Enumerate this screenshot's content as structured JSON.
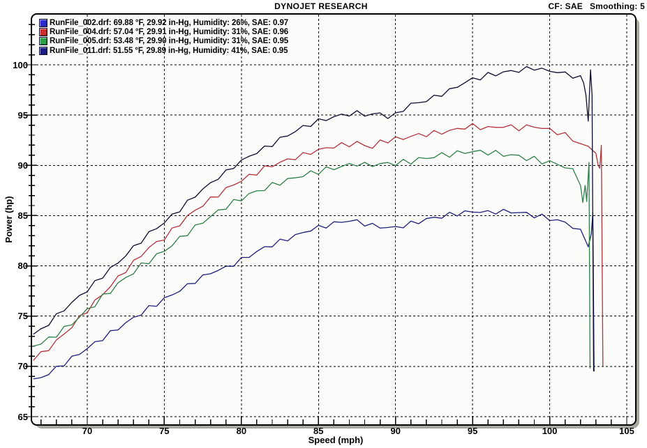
{
  "header": {
    "title": "DYNOJET RESEARCH",
    "cf": "CF: SAE",
    "smoothing": "Smoothing: 5"
  },
  "chart_data": {
    "type": "line",
    "title": "DYNOJET RESEARCH",
    "xlabel": "Speed (mph)",
    "ylabel": "Power (hp)",
    "xlim": [
      66.4,
      105.6
    ],
    "ylim": [
      64.2,
      105.1
    ],
    "x_ticks": [
      70,
      75,
      80,
      85,
      90,
      95,
      100,
      105
    ],
    "y_ticks": [
      65,
      70,
      75,
      80,
      85,
      90,
      95,
      100
    ],
    "x_minor_from": 67,
    "x_minor_to": 105,
    "y_minor_from": 65,
    "y_minor_to": 104,
    "grid": "dashed",
    "legend_position": "top-left",
    "series": [
      {
        "name": "RunFile_002.drf",
        "label": "RunFile_002.drf: 69.88 °F, 29.92 in-Hg, Humidity: 26%, SAE: 0.97",
        "marker_color": "#2b2bd0",
        "curve_color": "#1e1e7a",
        "x0": 66.5,
        "dx": 0.5,
        "hp": [
          68.6,
          68.9,
          69.3,
          69.8,
          70.3,
          70.8,
          71.3,
          71.8,
          72.3,
          72.8,
          73.3,
          73.8,
          74.3,
          74.8,
          75.3,
          75.8,
          76.2,
          76.7,
          77.1,
          77.6,
          78.0,
          78.5,
          78.9,
          79.3,
          79.6,
          79.8,
          80.2,
          80.6,
          81.0,
          81.4,
          81.8,
          82.1,
          82.4,
          82.7,
          83.0,
          83.3,
          83.6,
          83.8,
          84.0,
          84.2,
          84.4,
          84.5,
          84.4,
          84.2,
          84.0,
          83.9,
          83.8,
          83.8,
          84.0,
          84.2,
          84.4,
          84.6,
          84.8,
          84.9,
          85.1,
          85.2,
          85.3,
          85.4,
          85.4,
          85.3,
          85.4,
          85.4,
          85.4,
          85.3,
          85.2,
          85.0,
          84.9,
          84.7,
          84.5,
          84.3,
          83.9,
          83.4
        ],
        "tail": [
          [
            102.3,
            82.6
          ],
          [
            102.5,
            81.9
          ],
          [
            102.7,
            83.2
          ],
          [
            102.8,
            85.3
          ],
          [
            102.88,
            69.5
          ]
        ],
        "wiggle": 0.25,
        "phase": 0.5
      },
      {
        "name": "RunFile_004.drf",
        "label": "RunFile_004.drf: 57.04 °F, 29.91 in-Hg, Humidity: 31%, SAE: 0.96",
        "marker_color": "#cc2c2c",
        "curve_color": "#b4323c",
        "x0": 66.5,
        "dx": 0.5,
        "hp": [
          70.8,
          71.2,
          71.8,
          72.5,
          73.2,
          74.0,
          74.8,
          75.6,
          76.4,
          77.2,
          78.0,
          78.8,
          79.6,
          80.3,
          81.1,
          81.8,
          82.3,
          82.8,
          83.5,
          84.2,
          84.9,
          85.5,
          86.1,
          86.6,
          87.1,
          87.6,
          88.1,
          88.5,
          88.9,
          89.3,
          89.7,
          90.0,
          90.3,
          90.5,
          90.8,
          91.0,
          91.3,
          91.5,
          91.7,
          91.9,
          92.0,
          92.1,
          92.2,
          92.0,
          91.8,
          92.3,
          92.5,
          92.6,
          92.7,
          92.9,
          93.0,
          93.1,
          93.2,
          93.3,
          93.4,
          93.6,
          93.8,
          93.9,
          93.8,
          93.7,
          93.8,
          93.9,
          93.8,
          93.7,
          93.8,
          93.9,
          93.7,
          93.5,
          93.3,
          93.0,
          92.6,
          92.1,
          91.8,
          91.4
        ],
        "tail": [
          [
            103.15,
            90.0
          ],
          [
            103.25,
            89.7
          ],
          [
            103.35,
            92.0
          ],
          [
            103.45,
            70.0
          ]
        ],
        "wiggle": 0.27,
        "phase": 2.1
      },
      {
        "name": "RunFile_005.drf",
        "label": "RunFile_005.drf: 53.48 °F, 29.90 in-Hg, Humidity: 31%, SAE: 0.95",
        "marker_color": "#2ca044",
        "curve_color": "#2e8049",
        "x0": 66.5,
        "dx": 0.5,
        "hp": [
          72.1,
          72.3,
          72.7,
          73.2,
          73.7,
          74.3,
          74.9,
          75.6,
          76.2,
          76.9,
          77.5,
          78.2,
          78.8,
          79.4,
          80.0,
          80.5,
          81.0,
          81.5,
          82.1,
          82.7,
          83.3,
          83.8,
          84.4,
          84.9,
          85.4,
          85.9,
          86.3,
          86.7,
          87.1,
          87.4,
          87.7,
          88.0,
          88.3,
          88.5,
          88.8,
          89.0,
          89.2,
          89.4,
          89.6,
          89.7,
          89.9,
          90.0,
          90.2,
          90.0,
          90.1,
          90.1,
          90.2,
          90.2,
          90.3,
          90.4,
          90.6,
          90.7,
          90.9,
          91.0,
          91.1,
          91.2,
          91.3,
          91.4,
          91.3,
          91.3,
          91.2,
          91.1,
          91.0,
          90.9,
          90.7,
          90.6,
          90.4,
          90.3,
          90.1,
          89.9,
          89.4,
          88.3
        ],
        "tail": [
          [
            102.15,
            86.3
          ],
          [
            102.3,
            88.0
          ],
          [
            102.4,
            86.4
          ],
          [
            102.55,
            90.3
          ],
          [
            102.62,
            69.8
          ]
        ],
        "wiggle": 0.3,
        "phase": 4.0
      },
      {
        "name": "RunFile_011.drf",
        "label": "RunFile_011.drf: 51.55 °F, 29.89 in-Hg, Humidity: 41%, SAE: 0.95",
        "marker_color": "#1c1c86",
        "curve_color": "#0c0c30",
        "x0": 66.5,
        "dx": 0.5,
        "hp": [
          73.2,
          73.6,
          74.3,
          75.0,
          75.7,
          76.3,
          77.0,
          77.6,
          78.3,
          79.0,
          79.7,
          80.3,
          81.1,
          81.8,
          82.5,
          83.2,
          83.8,
          84.3,
          85.0,
          85.6,
          86.3,
          87.0,
          87.6,
          88.2,
          88.8,
          89.3,
          89.9,
          90.4,
          90.9,
          91.3,
          91.7,
          92.1,
          92.6,
          93.0,
          93.4,
          93.8,
          94.1,
          94.4,
          94.6,
          94.8,
          95.0,
          95.1,
          95.2,
          95.1,
          95.0,
          95.2,
          94.8,
          95.0,
          95.6,
          96.0,
          96.3,
          96.4,
          96.8,
          97.1,
          97.4,
          97.9,
          98.2,
          98.6,
          98.7,
          99.0,
          99.1,
          99.2,
          99.4,
          99.4,
          99.6,
          99.7,
          99.5,
          99.4,
          99.3,
          99.1,
          98.9,
          98.7
        ],
        "tail": [
          [
            102.2,
            98.2
          ],
          [
            102.35,
            97.0
          ],
          [
            102.5,
            94.4
          ],
          [
            102.65,
            99.5
          ],
          [
            102.75,
            97.0
          ],
          [
            102.85,
            69.5
          ]
        ],
        "wiggle": 0.24,
        "phase": 1.2
      }
    ],
    "frame_shadow_color": "#a8a8a0",
    "plot_bg_color": "#fcfcfa"
  }
}
